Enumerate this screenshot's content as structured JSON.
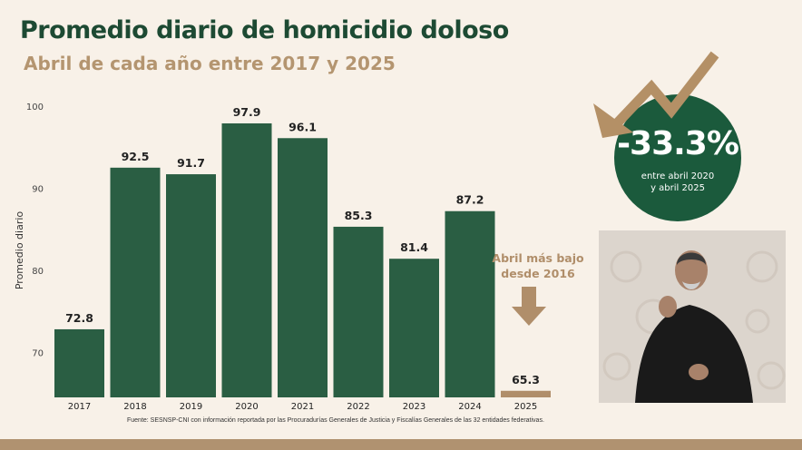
{
  "header": {
    "title": "Promedio diario de homicidio doloso",
    "subtitle": "Abril de cada año entre 2017 y 2025"
  },
  "chart_data": {
    "type": "bar",
    "title": "Promedio diario de homicidio doloso",
    "subtitle": "Abril de cada año entre 2017 y 2025",
    "categories": [
      "2017",
      "2018",
      "2019",
      "2020",
      "2021",
      "2022",
      "2023",
      "2024",
      "2025"
    ],
    "values": [
      72.8,
      92.5,
      91.7,
      97.9,
      96.1,
      85.3,
      81.4,
      87.2,
      65.3
    ],
    "value_labels": [
      "72.8",
      "92.5",
      "91.7",
      "97.9",
      "96.1",
      "85.3",
      "81.4",
      "87.2",
      "65.3"
    ],
    "ylabel": "Promedio diario",
    "ylim": [
      64.5,
      100
    ],
    "yticks": [
      "70",
      "80",
      "90",
      "100"
    ],
    "grid": false,
    "bar_color": "#2a5e43",
    "highlight_color": "#b08e6a",
    "highlight_index": 8
  },
  "annotation": {
    "text": "Abril más bajo desde 2016",
    "color": "#b08e6a"
  },
  "badge": {
    "value": "-33.3%",
    "subtitle_line1": "entre abril 2020",
    "subtitle_line2": "y abril 2025",
    "color": "#1b5a3c"
  },
  "source": "Fuente: SESNSP-CNI con información reportada por las Procuradurías Generales de Justicia y Fiscalías Generales de las 32 entidades federativas.",
  "colors": {
    "title": "#1d4a33",
    "subtitle": "#b49570",
    "background": "#f8f1e8",
    "bottom_bar": "#b09270"
  }
}
